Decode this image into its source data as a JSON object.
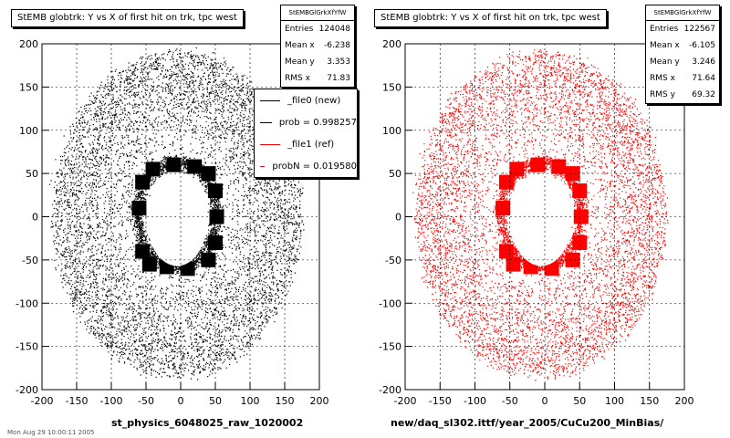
{
  "chart_data": [
    {
      "type": "scatter",
      "title": "StEMB globtrk: Y vs X of first hit on trk, tpc west",
      "xlabel": "st_physics_6048025_raw_1020002",
      "ylabel": "",
      "xlim": [
        -200,
        200
      ],
      "ylim": [
        -200,
        200
      ],
      "x_ticks": [
        "-200",
        "-150",
        "-100",
        "-50",
        "0",
        "50",
        "100",
        "150",
        "200"
      ],
      "y_ticks": [
        "200",
        "150",
        "100",
        "50",
        "0",
        "-50",
        "-100",
        "-150",
        "-200"
      ],
      "grid": true,
      "color": "#000000",
      "stats": {
        "name": "StEMBGlGrkXfYfW",
        "rows": [
          {
            "label": "Entries",
            "value": "124048"
          },
          {
            "label": "Mean x",
            "value": "-6.238"
          },
          {
            "label": "Mean y",
            "value": "3.353"
          },
          {
            "label": "RMS x",
            "value": "71.83"
          }
        ]
      },
      "legend": [
        {
          "label": "_file0 (new)",
          "color": "#000000"
        },
        {
          "label": "prob = 0.998257",
          "color": "#000000"
        },
        {
          "label": "_file1 (ref)",
          "color": "#ff0000"
        },
        {
          "label": "probN = 0.019580",
          "color": "#ff0000"
        }
      ]
    },
    {
      "type": "scatter",
      "title": "StEMB globtrk: Y vs X of first hit on trk, tpc west",
      "xlabel": "new/daq_sl302.ittf/year_2005/CuCu200_MinBias/",
      "ylabel": "",
      "xlim": [
        -200,
        200
      ],
      "ylim": [
        -200,
        200
      ],
      "x_ticks": [
        "-200",
        "-150",
        "-100",
        "-50",
        "0",
        "50",
        "100",
        "150",
        "200"
      ],
      "y_ticks": [
        "200",
        "150",
        "100",
        "50",
        "0",
        "-50",
        "-100",
        "-150",
        "-200"
      ],
      "grid": true,
      "color": "#ff0000",
      "stats": {
        "name": "StEMBGlGrkXfYfW",
        "rows": [
          {
            "label": "Entries",
            "value": "122567"
          },
          {
            "label": "Mean x",
            "value": "-6.105"
          },
          {
            "label": "Mean y",
            "value": "3.246"
          },
          {
            "label": "RMS x",
            "value": "71.64"
          },
          {
            "label": "RMS y",
            "value": "69.32"
          }
        ]
      }
    }
  ],
  "footer_text": "Mon Aug 29 10:00:11 2005"
}
